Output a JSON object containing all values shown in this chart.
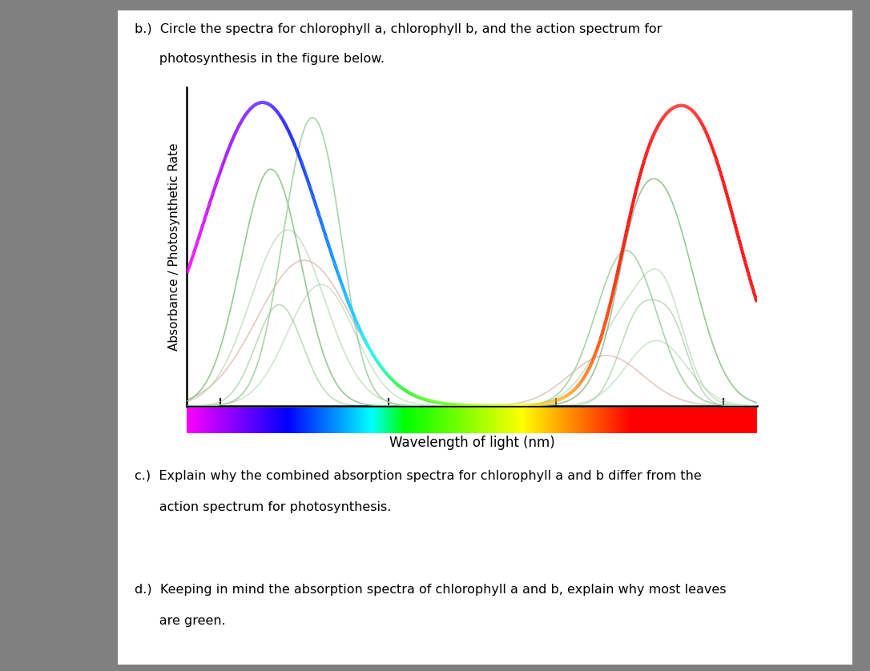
{
  "text_b_line1": "b.)  Circle the spectra for chlorophyll a, chlorophyll b, and the action spectrum for",
  "text_b_line2": "      photosynthesis in the figure below.",
  "text_c_line1": "c.)  Explain why the combined absorption spectra for chlorophyll a and b differ from the",
  "text_c_line2": "      action spectrum for photosynthesis.",
  "text_d_line1": "d.)  Keeping in mind the absorption spectra of chlorophyll a and b, explain why most leaves",
  "text_d_line2": "      are green.",
  "xlabel": "Wavelength of light (nm)",
  "ylabel": "Absorbance / Photosynthetic Rate",
  "xlim": [
    380,
    720
  ],
  "ylim": [
    0,
    1.05
  ],
  "xticks": [
    400,
    500,
    600,
    700
  ],
  "page_bg": "#ffffff",
  "outer_bg": "#808080",
  "text_fontsize": 11.5,
  "xlabel_fontsize": 12,
  "ylabel_fontsize": 11,
  "tick_fontsize": 13
}
